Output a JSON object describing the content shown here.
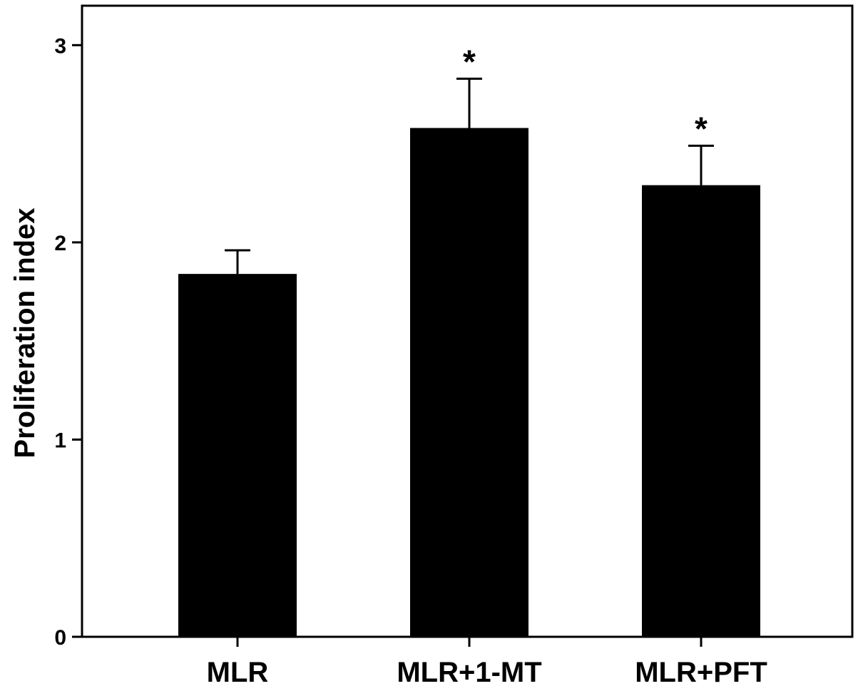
{
  "chart_data": {
    "type": "bar",
    "title": "",
    "xlabel": "",
    "ylabel": "Proliferation index",
    "categories": [
      "MLR",
      "MLR+1-MT",
      "MLR+PFT"
    ],
    "values": [
      1.84,
      2.58,
      2.29
    ],
    "error_upper": [
      0.12,
      0.25,
      0.2
    ],
    "significance": [
      "",
      "*",
      "*"
    ],
    "ylim": [
      0,
      3.2
    ],
    "yticks": [
      0,
      1,
      2,
      3
    ],
    "ytick_labels": [
      "0",
      "1",
      "2",
      "3"
    ],
    "grid": false,
    "legend": "none",
    "colors": {
      "bar": "#000000",
      "axis": "#000000",
      "background": "#ffffff"
    }
  }
}
